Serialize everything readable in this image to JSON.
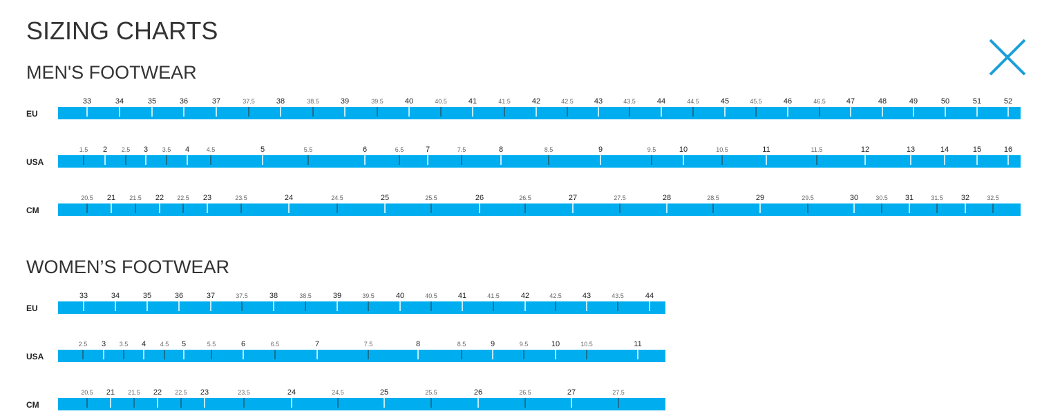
{
  "header": {
    "title": "SIZING CHARTS"
  },
  "sections": [
    {
      "title": "MEN'S FOOTWEAR",
      "rows": [
        {
          "label": "EU",
          "sizes": [
            "33",
            "34",
            "35",
            "36",
            "37",
            "37.5",
            "38",
            "38.5",
            "39",
            "39.5",
            "40",
            "40.5",
            "41",
            "41.5",
            "42",
            "42.5",
            "43",
            "43.5",
            "44",
            "44.5",
            "45",
            "45.5",
            "46",
            "46.5",
            "47",
            "48",
            "49",
            "50",
            "51",
            "52"
          ]
        },
        {
          "label": "USA",
          "sizes": [
            "1.5",
            "2",
            "2.5",
            "3",
            "3.5",
            "4",
            "4.5",
            "5",
            "5.5",
            "6",
            "6.5",
            "7",
            "7.5",
            "8",
            "8.5",
            "9",
            "9.5",
            "10",
            "10.5",
            "11",
            "11.5",
            "12",
            "13",
            "14",
            "15",
            "16"
          ]
        },
        {
          "label": "CM",
          "sizes": [
            "20.5",
            "21",
            "21.5",
            "22",
            "22.5",
            "23",
            "23.5",
            "24",
            "24.5",
            "25",
            "25.5",
            "26",
            "26.5",
            "27",
            "27.5",
            "28",
            "28.5",
            "29",
            "29.5",
            "30",
            "30.5",
            "31",
            "31.5",
            "32",
            "32.5"
          ]
        }
      ]
    },
    {
      "title": "WOMEN’S FOOTWEAR",
      "rows": [
        {
          "label": "EU",
          "sizes": [
            "33",
            "34",
            "35",
            "36",
            "37",
            "37.5",
            "38",
            "38.5",
            "39",
            "39.5",
            "40",
            "40.5",
            "41",
            "41.5",
            "42",
            "42.5",
            "43",
            "43.5",
            "44"
          ]
        },
        {
          "label": "USA",
          "sizes": [
            "2.5",
            "3",
            "3.5",
            "4",
            "4.5",
            "5",
            "5.5",
            "6",
            "6.5",
            "7",
            "7.5",
            "8",
            "8.5",
            "9",
            "9.5",
            "10",
            "10.5",
            "11"
          ]
        },
        {
          "label": "CM",
          "sizes": [
            "20.5",
            "21",
            "21.5",
            "22",
            "22.5",
            "23",
            "23.5",
            "24",
            "24.5",
            "25",
            "25.5",
            "26",
            "26.5",
            "27",
            "27.5"
          ]
        }
      ]
    }
  ]
}
